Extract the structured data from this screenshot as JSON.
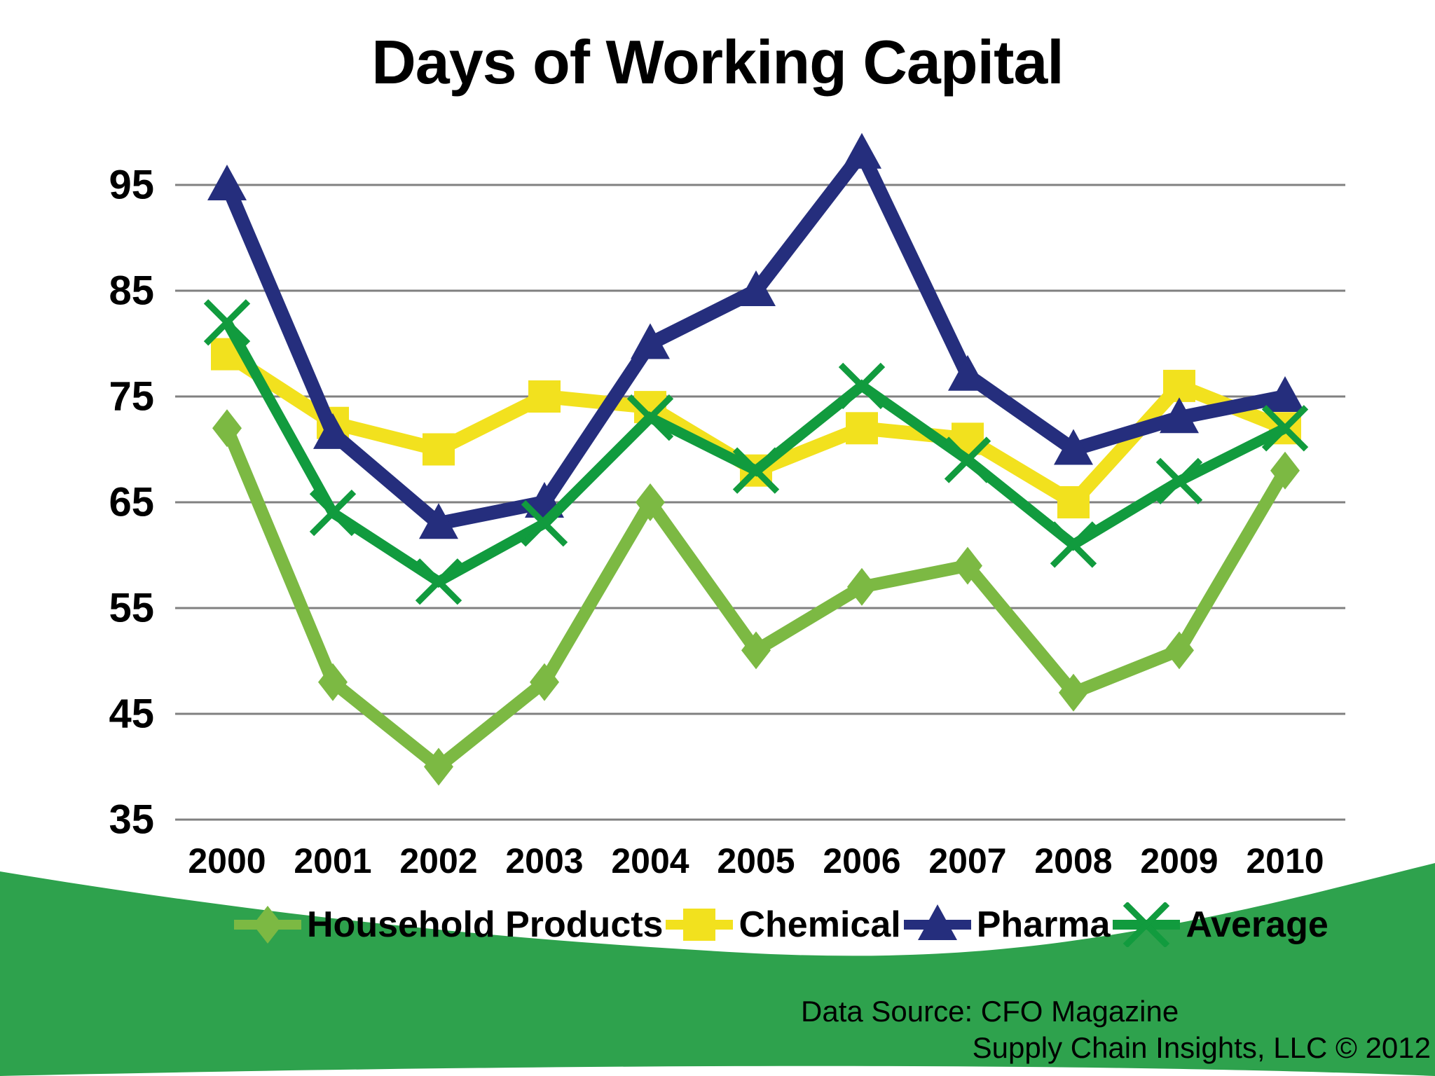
{
  "title": "Days of Working Capital",
  "footer": {
    "data_source": "Data Source:  CFO Magazine",
    "copyright": "Supply Chain Insights, LLC © 2012"
  },
  "colors": {
    "household": "#7CB943",
    "chemical": "#F2E11E",
    "pharma": "#252E7D",
    "average": "#119B3E",
    "wave_band": "#2EA24D",
    "gridline": "#808080",
    "text": "#000000",
    "background": "#FFFFFF"
  },
  "chart_data": {
    "type": "line",
    "title": "Days of Working Capital",
    "xlabel": "",
    "ylabel": "",
    "categories": [
      "2000",
      "2001",
      "2002",
      "2003",
      "2004",
      "2005",
      "2006",
      "2007",
      "2008",
      "2009",
      "2010"
    ],
    "yticks": [
      95,
      85,
      75,
      65,
      55,
      45,
      35
    ],
    "ylim": [
      35,
      95
    ],
    "grid": true,
    "legend_position": "bottom",
    "series": [
      {
        "name": "Household Products",
        "marker": "diamond",
        "color": "#7CB943",
        "values": [
          72,
          48,
          40,
          48,
          65,
          51,
          57,
          59,
          47,
          51,
          68
        ]
      },
      {
        "name": "Chemical",
        "marker": "square",
        "color": "#F2E11E",
        "values": [
          79,
          72.5,
          70,
          75,
          74,
          68,
          72,
          71,
          65,
          76,
          72
        ]
      },
      {
        "name": "Pharma",
        "marker": "triangle",
        "color": "#252E7D",
        "values": [
          95,
          71.5,
          63,
          65,
          80,
          85,
          98,
          77,
          70,
          73,
          75
        ]
      },
      {
        "name": "Average",
        "marker": "x",
        "color": "#119B3E",
        "values": [
          82,
          64,
          57.5,
          63,
          73,
          68,
          76,
          69,
          61,
          67,
          72
        ]
      }
    ]
  }
}
